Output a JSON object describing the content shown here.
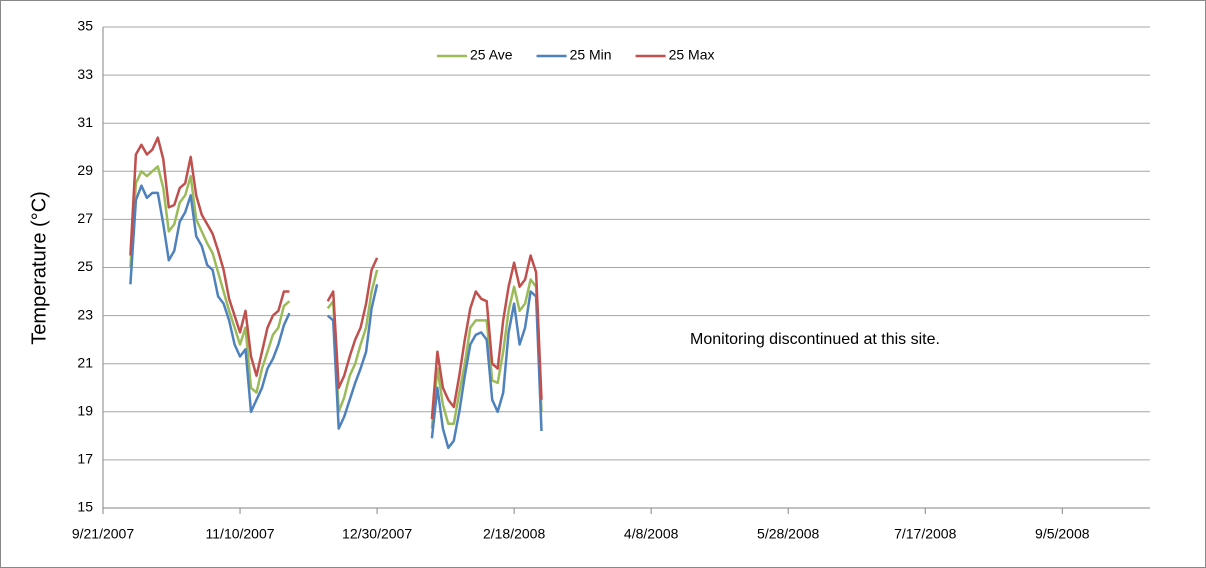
{
  "chart_data": {
    "type": "line",
    "y_label": "Temperature (°C)",
    "annotation": "Monitoring discontinued at this site.",
    "legend": "top",
    "grid": true,
    "x": [
      "2007-10-01",
      "2007-10-03",
      "2007-10-05",
      "2007-10-07",
      "2007-10-09",
      "2007-10-11",
      "2007-10-13",
      "2007-10-15",
      "2007-10-17",
      "2007-10-19",
      "2007-10-21",
      "2007-10-23",
      "2007-10-25",
      "2007-10-27",
      "2007-10-29",
      "2007-10-31",
      "2007-11-02",
      "2007-11-04",
      "2007-11-06",
      "2007-11-08",
      "2007-11-10",
      "2007-11-12",
      "2007-11-14",
      "2007-11-16",
      "2007-11-18",
      "2007-11-20",
      "2007-11-22",
      "2007-11-24",
      "2007-11-26",
      "2007-11-28",
      null,
      "2007-12-12",
      "2007-12-14",
      "2007-12-16",
      "2007-12-18",
      "2007-12-20",
      "2007-12-22",
      "2007-12-24",
      "2007-12-26",
      "2007-12-28",
      "2007-12-30",
      null,
      "2008-01-19",
      "2008-01-21",
      "2008-01-23",
      "2008-01-25",
      "2008-01-27",
      "2008-01-29",
      "2008-01-31",
      "2008-02-02",
      "2008-02-04",
      "2008-02-06",
      "2008-02-08",
      "2008-02-10",
      "2008-02-12",
      "2008-02-14",
      "2008-02-16",
      "2008-02-18",
      "2008-02-20",
      "2008-02-22",
      "2008-02-24",
      "2008-02-26",
      "2008-02-28"
    ],
    "series": [
      {
        "name": "25 Ave",
        "color": "#9bbb59",
        "values": [
          25.0,
          28.5,
          29.0,
          28.8,
          29.0,
          29.2,
          28.3,
          26.5,
          26.8,
          27.7,
          28.0,
          28.8,
          27.0,
          26.5,
          26.0,
          25.6,
          24.8,
          24.0,
          23.2,
          22.5,
          21.8,
          22.5,
          20.0,
          19.8,
          20.8,
          21.5,
          22.2,
          22.5,
          23.4,
          23.6,
          null,
          23.3,
          23.6,
          19.0,
          19.6,
          20.5,
          21.0,
          21.8,
          22.5,
          24.0,
          24.9,
          null,
          18.3,
          20.8,
          19.3,
          18.5,
          18.5,
          19.8,
          21.0,
          22.5,
          22.8,
          22.8,
          22.8,
          20.3,
          20.2,
          21.5,
          23.2,
          24.2,
          23.2,
          23.5,
          24.5,
          24.2,
          19.0
        ]
      },
      {
        "name": "25 Min",
        "color": "#4f81bd",
        "values": [
          24.3,
          27.8,
          28.4,
          27.9,
          28.1,
          28.1,
          26.8,
          25.3,
          25.7,
          26.9,
          27.3,
          28.0,
          26.3,
          25.9,
          25.1,
          24.9,
          23.8,
          23.5,
          22.8,
          21.8,
          21.3,
          21.6,
          19.0,
          19.5,
          20.0,
          20.8,
          21.2,
          21.8,
          22.6,
          23.1,
          null,
          23.0,
          22.8,
          18.3,
          18.8,
          19.5,
          20.2,
          20.8,
          21.5,
          23.3,
          24.3,
          null,
          17.9,
          20.0,
          18.3,
          17.5,
          17.8,
          19.0,
          20.5,
          21.8,
          22.2,
          22.3,
          22.0,
          19.5,
          19.0,
          19.8,
          22.3,
          23.5,
          21.8,
          22.5,
          24.0,
          23.8,
          18.2
        ]
      },
      {
        "name": "25 Max",
        "color": "#c0504d",
        "values": [
          25.5,
          29.7,
          30.1,
          29.7,
          29.9,
          30.4,
          29.5,
          27.5,
          27.6,
          28.3,
          28.5,
          29.6,
          28.0,
          27.2,
          26.8,
          26.4,
          25.7,
          24.9,
          23.7,
          23.0,
          22.3,
          23.2,
          21.3,
          20.5,
          21.5,
          22.5,
          23.0,
          23.2,
          24.0,
          24.0,
          null,
          23.6,
          24.0,
          20.0,
          20.5,
          21.3,
          22.0,
          22.5,
          23.5,
          24.9,
          25.4,
          null,
          18.7,
          21.5,
          20.0,
          19.5,
          19.2,
          20.5,
          22.0,
          23.3,
          24.0,
          23.7,
          23.6,
          21.0,
          20.8,
          22.8,
          24.2,
          25.2,
          24.2,
          24.5,
          25.5,
          24.8,
          19.5
        ]
      }
    ],
    "xlim": [
      "2007-09-21",
      "2008-10-07"
    ],
    "xticks": [
      {
        "value": "2007-09-21",
        "label": "9/21/2007"
      },
      {
        "value": "2007-11-10",
        "label": "11/10/2007"
      },
      {
        "value": "2007-12-30",
        "label": "12/30/2007"
      },
      {
        "value": "2008-02-18",
        "label": "2/18/2008"
      },
      {
        "value": "2008-04-08",
        "label": "4/8/2008"
      },
      {
        "value": "2008-05-28",
        "label": "5/28/2008"
      },
      {
        "value": "2008-07-17",
        "label": "7/17/2008"
      },
      {
        "value": "2008-09-05",
        "label": "9/5/2008"
      }
    ],
    "ylim": [
      15,
      35
    ],
    "yticks": [
      15,
      17,
      19,
      21,
      23,
      25,
      27,
      29,
      31,
      33,
      35
    ]
  }
}
